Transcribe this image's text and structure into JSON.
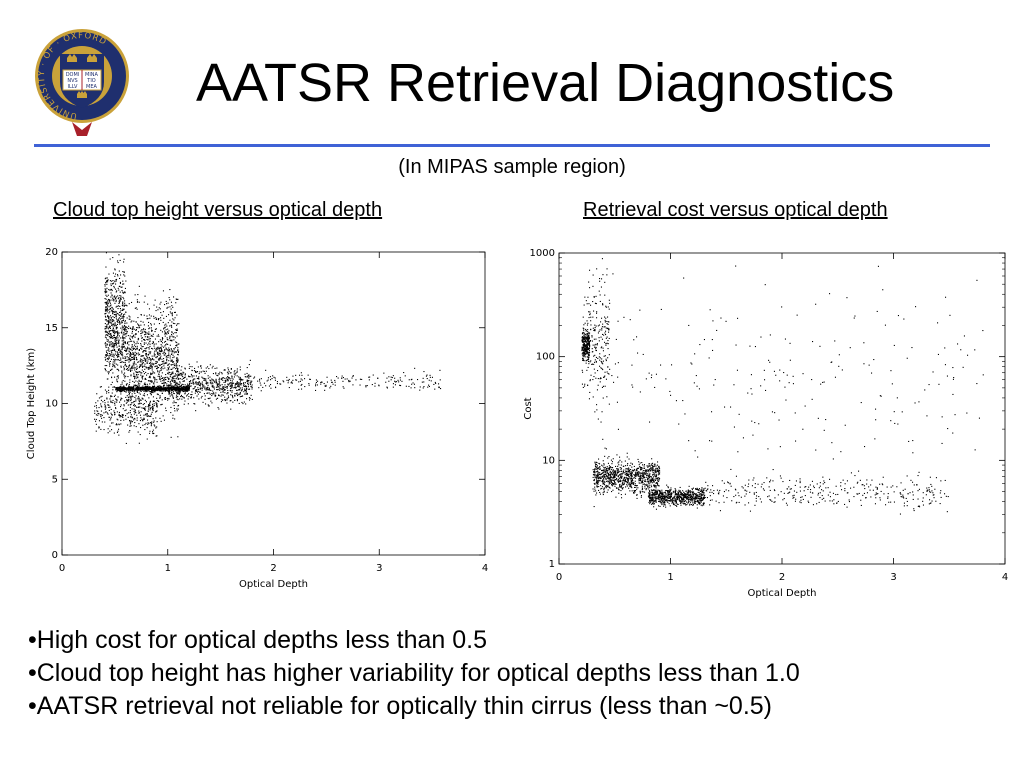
{
  "slide": {
    "title": "AATSR Retrieval Diagnostics",
    "subtitle": "(In MIPAS sample region)",
    "bullets": [
      "•High cost for optical depths less than 0.5",
      "•Cloud top height has higher variability for optical depths less than 1.0",
      "•AATSR retrieval not reliable for optically thin cirrus (less than ~0.5)"
    ],
    "logo": {
      "ring_text": "UNIVERSITY · OF · OXFORD",
      "book_text": [
        "DOMI",
        "NVS",
        "ILLV",
        "MINA",
        "TIO",
        "MEA"
      ],
      "colors": {
        "shield": "#1f2f6e",
        "ring": "#1f2f6e",
        "gold": "#caa23a",
        "red": "#a8202a"
      }
    },
    "colors": {
      "rule": "#3f62d6",
      "points": "#000000"
    }
  },
  "chart_data": [
    {
      "type": "scatter",
      "caption": "Cloud top height versus optical depth",
      "xlabel": "Optical Depth",
      "ylabel": "Cloud Top Height (km)",
      "xlim": [
        0,
        4
      ],
      "ylim": [
        0,
        20
      ],
      "xticks": [
        0,
        1,
        2,
        3,
        4
      ],
      "yticks": [
        0,
        5,
        10,
        15,
        20
      ],
      "yscale": "linear",
      "grid": false,
      "clusters": [
        {
          "x_range": [
            0.4,
            0.6
          ],
          "y_center": 15.0,
          "y_spread": 4.2,
          "count": 700
        },
        {
          "x_range": [
            0.6,
            1.1
          ],
          "y_center": 12.8,
          "y_spread": 3.5,
          "count": 1100
        },
        {
          "x_range": [
            0.5,
            1.2
          ],
          "y_center": 11.0,
          "y_spread": 0.15,
          "count": 900
        },
        {
          "x_range": [
            1.0,
            1.8
          ],
          "y_center": 11.2,
          "y_spread": 1.2,
          "count": 700
        },
        {
          "x_range": [
            1.8,
            3.6
          ],
          "y_center": 11.5,
          "y_spread": 0.6,
          "count": 200
        },
        {
          "x_range": [
            0.3,
            0.9
          ],
          "y_center": 9.5,
          "y_spread": 1.5,
          "count": 300
        }
      ]
    },
    {
      "type": "scatter",
      "caption": "Retrieval cost versus optical depth",
      "xlabel": "Optical Depth",
      "ylabel": "Cost",
      "xlim": [
        0,
        4
      ],
      "ylim": [
        1,
        1000
      ],
      "xticks": [
        0,
        1,
        2,
        3,
        4
      ],
      "yticks": [
        1,
        10,
        100,
        1000
      ],
      "yscale": "log",
      "grid": false,
      "clusters": [
        {
          "x_range": [
            0.2,
            0.27
          ],
          "y_center": 130,
          "y_spread": 0.12,
          "count": 250
        },
        {
          "x_range": [
            0.2,
            0.45
          ],
          "y_center": 150,
          "y_spread": 0.6,
          "count": 250
        },
        {
          "x_range": [
            0.3,
            0.9
          ],
          "y_center": 7,
          "y_spread": 0.15,
          "count": 900
        },
        {
          "x_range": [
            0.8,
            1.3
          ],
          "y_center": 4.5,
          "y_spread": 0.08,
          "count": 700
        },
        {
          "x_range": [
            1.3,
            3.5
          ],
          "y_center": 5.0,
          "y_spread": 0.15,
          "count": 350
        },
        {
          "x_range": [
            0.3,
            3.8
          ],
          "y_center": 60,
          "y_spread": 1.0,
          "count": 250
        }
      ]
    }
  ]
}
